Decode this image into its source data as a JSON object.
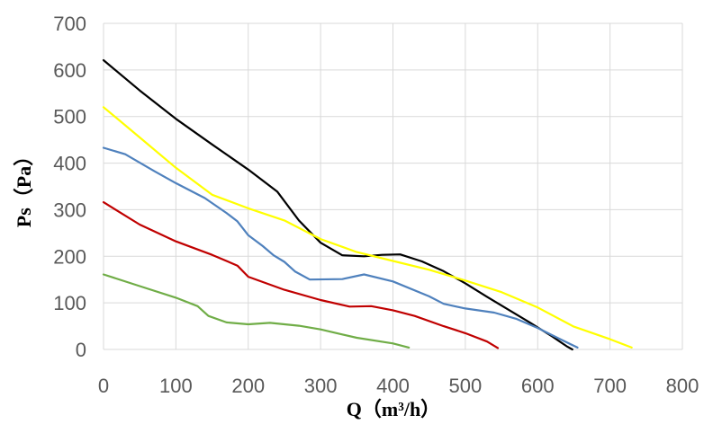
{
  "chart_data": {
    "type": "line",
    "title": "",
    "xlabel": "Q（m³/h）",
    "ylabel": "Ps（Pa）",
    "xlim": [
      0,
      800
    ],
    "ylim": [
      0,
      700
    ],
    "x_ticks": [
      "0",
      "100",
      "200",
      "300",
      "400",
      "500",
      "600",
      "700",
      "800"
    ],
    "y_ticks": [
      "0",
      "100",
      "200",
      "300",
      "400",
      "500",
      "600",
      "700"
    ],
    "grid": true,
    "legend": "none",
    "series": [
      {
        "color": "#000000",
        "points": [
          [
            0,
            621
          ],
          [
            50,
            556
          ],
          [
            100,
            495
          ],
          [
            150,
            440
          ],
          [
            200,
            386
          ],
          [
            240,
            339
          ],
          [
            270,
            277
          ],
          [
            300,
            229
          ],
          [
            330,
            202
          ],
          [
            360,
            200
          ],
          [
            385,
            203
          ],
          [
            410,
            204
          ],
          [
            440,
            189
          ],
          [
            470,
            168
          ],
          [
            500,
            142
          ],
          [
            530,
            113
          ],
          [
            560,
            85
          ],
          [
            590,
            57
          ],
          [
            620,
            28
          ],
          [
            640,
            7
          ],
          [
            648,
            0
          ]
        ]
      },
      {
        "color": "#ffff00",
        "points": [
          [
            0,
            520
          ],
          [
            50,
            455
          ],
          [
            100,
            390
          ],
          [
            150,
            332
          ],
          [
            200,
            303
          ],
          [
            250,
            277
          ],
          [
            300,
            237
          ],
          [
            350,
            209
          ],
          [
            400,
            190
          ],
          [
            450,
            171
          ],
          [
            500,
            148
          ],
          [
            550,
            123
          ],
          [
            600,
            90
          ],
          [
            650,
            49
          ],
          [
            700,
            22
          ],
          [
            730,
            4
          ]
        ]
      },
      {
        "color": "#4f81bd",
        "points": [
          [
            0,
            433
          ],
          [
            30,
            419
          ],
          [
            70,
            383
          ],
          [
            100,
            357
          ],
          [
            140,
            325
          ],
          [
            170,
            293
          ],
          [
            185,
            275
          ],
          [
            200,
            245
          ],
          [
            220,
            222
          ],
          [
            235,
            202
          ],
          [
            250,
            188
          ],
          [
            265,
            167
          ],
          [
            285,
            150
          ],
          [
            330,
            151
          ],
          [
            360,
            161
          ],
          [
            400,
            146
          ],
          [
            450,
            114
          ],
          [
            470,
            98
          ],
          [
            500,
            88
          ],
          [
            540,
            79
          ],
          [
            570,
            66
          ],
          [
            600,
            46
          ],
          [
            630,
            23
          ],
          [
            655,
            4
          ]
        ]
      },
      {
        "color": "#c00000",
        "points": [
          [
            0,
            316
          ],
          [
            50,
            268
          ],
          [
            100,
            232
          ],
          [
            150,
            203
          ],
          [
            185,
            180
          ],
          [
            200,
            156
          ],
          [
            250,
            128
          ],
          [
            300,
            106
          ],
          [
            340,
            92
          ],
          [
            370,
            93
          ],
          [
            400,
            84
          ],
          [
            430,
            72
          ],
          [
            470,
            50
          ],
          [
            500,
            35
          ],
          [
            530,
            17
          ],
          [
            545,
            3
          ]
        ]
      },
      {
        "color": "#70ad47",
        "points": [
          [
            0,
            161
          ],
          [
            50,
            136
          ],
          [
            100,
            111
          ],
          [
            130,
            93
          ],
          [
            145,
            72
          ],
          [
            170,
            58
          ],
          [
            200,
            54
          ],
          [
            230,
            57
          ],
          [
            270,
            51
          ],
          [
            300,
            43
          ],
          [
            350,
            25
          ],
          [
            400,
            13
          ],
          [
            422,
            4
          ]
        ]
      }
    ]
  }
}
